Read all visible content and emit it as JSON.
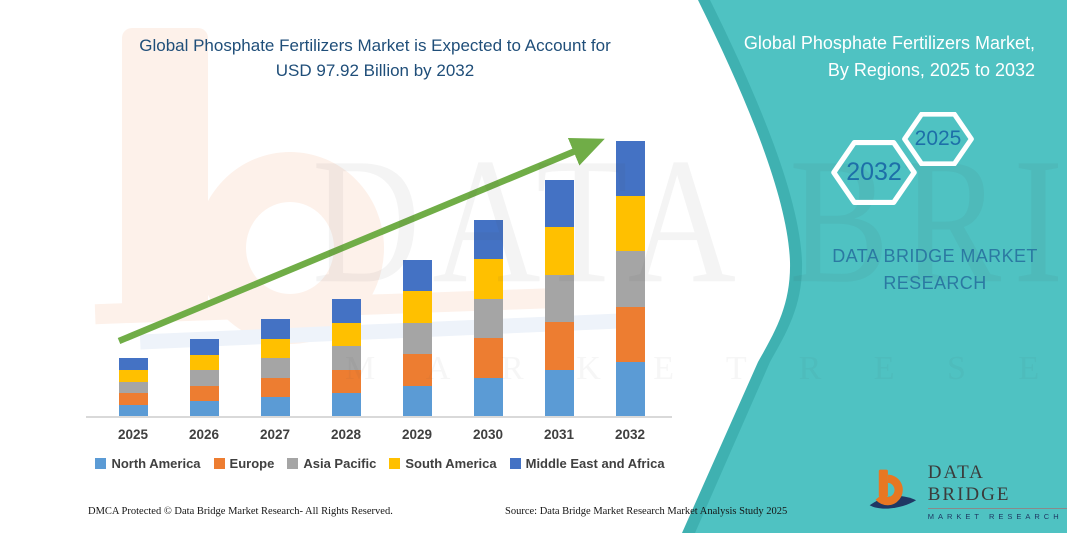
{
  "main_title": {
    "line1": "Global Phosphate Fertilizers Market is Expected to Account for",
    "line2": "USD 97.92 Billion by 2032"
  },
  "panel": {
    "title_line1": "Global Phosphate Fertilizers Market,",
    "title_line2": "By Regions, 2025 to 2032",
    "hexagon_back_year": "2032",
    "hexagon_front_year": "2025",
    "brand_line1": "DATA BRIDGE MARKET",
    "brand_line2": "RESEARCH"
  },
  "watermark": {
    "big": "DATA BRIDGE",
    "row": "M A R K E T   R E S E A R C H"
  },
  "logo": {
    "name": "DATA BRIDGE",
    "tagline": "MARKET RESEARCH"
  },
  "footer": {
    "dmca": "DMCA Protected © Data Bridge Market Research-  All Rights Reserved.",
    "source": "Source: Data Bridge Market Research  Market Analysis Study 2025"
  },
  "colors": {
    "title_navy": "#1F4E79",
    "panel_teal": "#4FC2C2",
    "panel_teal_dark": "#3FB1B1",
    "arrow_green": "#70AD47",
    "axis_gray": "#D9D9D9",
    "label_gray": "#404040",
    "hex_year_blue": "#1D6FA8",
    "brand_blue": "#2B79A2",
    "logo_orange": "#E87722",
    "logo_navy": "#1F3864"
  },
  "chart_data": {
    "type": "bar",
    "stacked": true,
    "title": "Global Phosphate Fertilizers Market is Expected to Account for USD 97.92 Billion by 2032",
    "unit": "USD billion",
    "categories": [
      "2025",
      "2026",
      "2027",
      "2028",
      "2029",
      "2030",
      "2031",
      "2032"
    ],
    "series": [
      {
        "name": "North America",
        "color": "#5B9BD5",
        "values": [
          4.18,
          5.54,
          6.96,
          8.38,
          11.14,
          13.98,
          16.82,
          19.58
        ]
      },
      {
        "name": "Europe",
        "color": "#ED7D31",
        "values": [
          4.18,
          5.54,
          6.96,
          8.38,
          11.14,
          13.98,
          16.82,
          19.58
        ]
      },
      {
        "name": "Asia Pacific",
        "color": "#A5A5A5",
        "values": [
          4.18,
          5.54,
          6.96,
          8.38,
          11.14,
          13.98,
          16.82,
          19.58
        ]
      },
      {
        "name": "South America",
        "color": "#FFC000",
        "values": [
          4.18,
          5.54,
          6.96,
          8.38,
          11.14,
          13.98,
          16.82,
          19.58
        ]
      },
      {
        "name": "Middle East and Africa",
        "color": "#4472C4",
        "values": [
          4.18,
          5.54,
          6.96,
          8.38,
          11.14,
          13.98,
          16.82,
          19.6
        ]
      }
    ],
    "totals_estimated": [
      20.9,
      27.7,
      34.8,
      41.9,
      55.7,
      69.9,
      84.1,
      97.92
    ],
    "labeled_value": "USD 97.92 Billion by 2032",
    "xlabel": "",
    "ylabel": "",
    "ylim": [
      0,
      100
    ],
    "grid": false,
    "y_axis_shown": false,
    "legend_position": "bottom",
    "trend_arrow": true,
    "note": "Only the 2032 total (97.92) is labeled; all other values are visual estimates from bar heights."
  }
}
